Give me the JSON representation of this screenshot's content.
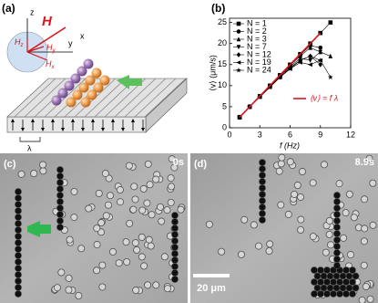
{
  "panels": {
    "a": {
      "label": "(a)",
      "H": "H",
      "z": "z",
      "x": "x",
      "y": "y",
      "hz": {
        "main": "H",
        "sub": "z"
      },
      "hx": {
        "main": "H",
        "sub": "x"
      },
      "hy": {
        "main": "H",
        "sub": "y"
      },
      "lambda": "λ"
    },
    "b": {
      "label": "(b)"
    },
    "c": {
      "label": "(c)",
      "time": "0s"
    },
    "d": {
      "label": "(d)",
      "time": "8.9s",
      "scale": "20 μm"
    }
  },
  "chart_data": {
    "type": "line",
    "x_label": "f (Hz)",
    "y_label": "⟨v⟩ (μm/s)",
    "xlim": [
      0,
      12
    ],
    "xticks": [
      0,
      3,
      6,
      9,
      12
    ],
    "ylim": [
      0,
      26
    ],
    "yticks": [
      0,
      5,
      10,
      15,
      20,
      25
    ],
    "legend": "upper left",
    "series": [
      {
        "name": "N = 1",
        "marker": "square",
        "color": "#000000",
        "x": [
          1,
          2,
          3,
          4,
          5,
          6,
          7,
          8,
          9,
          10
        ],
        "values": [
          2.5,
          5,
          7.5,
          10,
          12.5,
          15,
          17.5,
          20,
          22.5,
          25
        ]
      },
      {
        "name": "N = 2",
        "marker": "circle",
        "color": "#000000",
        "x": [
          1,
          2,
          3,
          4,
          5,
          6,
          7,
          8,
          9
        ],
        "values": [
          2.5,
          5,
          7.4,
          10,
          12.4,
          15,
          17.3,
          19.5,
          19
        ]
      },
      {
        "name": "N = 3",
        "marker": "triangle-up",
        "color": "#000000",
        "x": [
          1,
          2,
          3,
          4,
          5,
          6,
          7,
          8,
          9,
          10
        ],
        "values": [
          2.5,
          5,
          7.5,
          10,
          12.4,
          14.8,
          17,
          19,
          18,
          17
        ]
      },
      {
        "name": "N = 7",
        "marker": "triangle-down",
        "color": "#000000",
        "x": [
          1,
          2,
          3,
          4,
          5,
          6,
          7,
          8,
          9
        ],
        "values": [
          2.5,
          5,
          7.4,
          9.8,
          12.3,
          14.5,
          16.5,
          16,
          18
        ]
      },
      {
        "name": "N = 12",
        "marker": "diamond",
        "color": "#000000",
        "x": [
          1,
          2,
          3,
          4,
          5,
          6,
          7,
          8,
          9
        ],
        "values": [
          2.5,
          5,
          7.4,
          9.8,
          12,
          14.3,
          16,
          17,
          15
        ]
      },
      {
        "name": "N = 19",
        "marker": "triangle-left",
        "color": "#000000",
        "x": [
          1,
          2,
          3,
          4,
          5,
          6,
          7,
          8,
          9
        ],
        "values": [
          2.5,
          5,
          7.3,
          9.7,
          12,
          14,
          15.5,
          15,
          16
        ]
      },
      {
        "name": "N = 24",
        "marker": "star",
        "color": "#000000",
        "x": [
          1,
          2,
          3,
          4,
          5,
          6,
          7,
          8,
          9,
          10
        ],
        "values": [
          2.5,
          5,
          7.3,
          9.6,
          12,
          14,
          16,
          17,
          16,
          12
        ]
      },
      {
        "name": "⟨v⟩ = f λ",
        "marker": "none",
        "color": "#d8141c",
        "x": [
          1,
          9
        ],
        "values": [
          2.5,
          22.5
        ]
      }
    ]
  }
}
